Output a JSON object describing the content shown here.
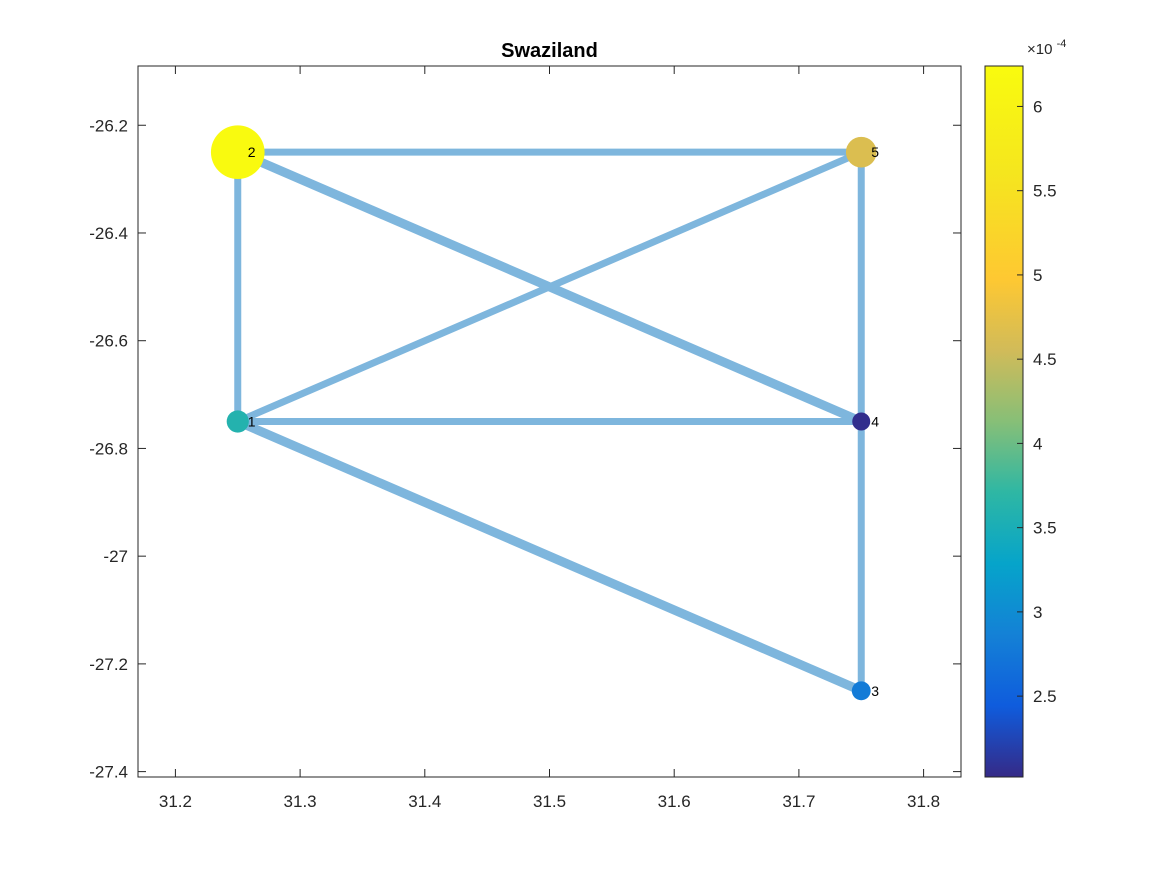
{
  "chart_data": {
    "type": "scatter",
    "title": "Swaziland",
    "xlim": [
      31.17,
      31.83
    ],
    "ylim": [
      -27.41,
      -26.09
    ],
    "x_ticks": [
      31.2,
      31.3,
      31.4,
      31.5,
      31.6,
      31.7,
      31.8
    ],
    "x_tick_labels": [
      "31.2",
      "31.3",
      "31.4",
      "31.5",
      "31.6",
      "31.7",
      "31.8"
    ],
    "y_ticks": [
      -26.2,
      -26.4,
      -26.6,
      -26.8,
      -27.0,
      -27.2,
      -27.4
    ],
    "y_tick_labels": [
      "-26.2",
      "-26.4",
      "-26.6",
      "-26.8",
      "-27",
      "-27.2",
      "-27.4"
    ],
    "nodes": [
      {
        "label": "1",
        "x": 31.25,
        "y": -26.75,
        "value": 0.00036
      },
      {
        "label": "2",
        "x": 31.25,
        "y": -26.25,
        "value": 0.000622
      },
      {
        "label": "3",
        "x": 31.75,
        "y": -27.25,
        "value": 0.00028
      },
      {
        "label": "4",
        "x": 31.75,
        "y": -26.75,
        "value": 0.000205
      },
      {
        "label": "5",
        "x": 31.75,
        "y": -26.25,
        "value": 0.000465
      }
    ],
    "edges": [
      {
        "from": 2,
        "to": 5,
        "weight": 1.0
      },
      {
        "from": 2,
        "to": 4,
        "weight": 1.3
      },
      {
        "from": 2,
        "to": 1,
        "weight": 1.0
      },
      {
        "from": 1,
        "to": 5,
        "weight": 1.0
      },
      {
        "from": 1,
        "to": 4,
        "weight": 1.0
      },
      {
        "from": 1,
        "to": 3,
        "weight": 1.3
      },
      {
        "from": 5,
        "to": 4,
        "weight": 1.0
      },
      {
        "from": 4,
        "to": 3,
        "weight": 1.0
      }
    ],
    "edge_color": "#7EB6DD",
    "colorbar": {
      "colormap": "parula",
      "range": [
        0.000202,
        0.000624
      ],
      "ticks": [
        2.5,
        3,
        3.5,
        4,
        4.5,
        5,
        5.5,
        6
      ],
      "tick_labels": [
        "2.5",
        "3",
        "3.5",
        "4",
        "4.5",
        "5",
        "5.5",
        "6"
      ],
      "multiplier_label": "×10",
      "multiplier_exponent": "-4"
    },
    "grid": false
  }
}
